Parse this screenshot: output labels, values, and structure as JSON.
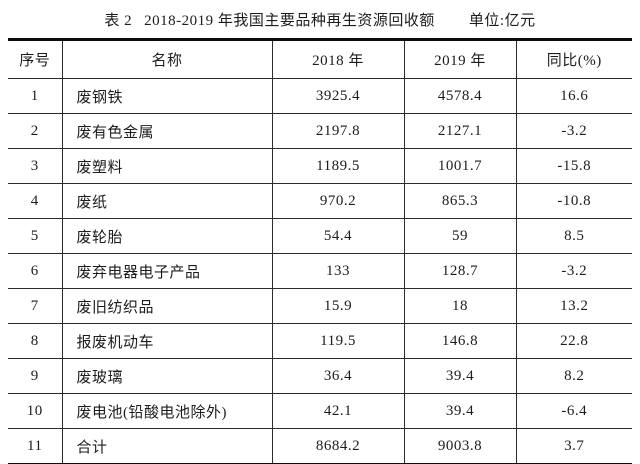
{
  "title": {
    "table_label": "表 2",
    "text": "2018-2019 年我国主要品种再生资源回收额",
    "unit": "单位:亿元"
  },
  "table": {
    "columns": [
      "序号",
      "名称",
      "2018 年",
      "2019 年",
      "同比(%)"
    ],
    "rows": [
      [
        "1",
        "废钢铁",
        "3925.4",
        "4578.4",
        "16.6"
      ],
      [
        "2",
        "废有色金属",
        "2197.8",
        "2127.1",
        "-3.2"
      ],
      [
        "3",
        "废塑料",
        "1189.5",
        "1001.7",
        "-15.8"
      ],
      [
        "4",
        "废纸",
        "970.2",
        "865.3",
        "-10.8"
      ],
      [
        "5",
        "废轮胎",
        "54.4",
        "59",
        "8.5"
      ],
      [
        "6",
        "废弃电器电子产品",
        "133",
        "128.7",
        "-3.2"
      ],
      [
        "7",
        "废旧纺织品",
        "15.9",
        "18",
        "13.2"
      ],
      [
        "8",
        "报废机动车",
        "119.5",
        "146.8",
        "22.8"
      ],
      [
        "9",
        "废玻璃",
        "36.4",
        "39.4",
        "8.2"
      ],
      [
        "10",
        "废电池(铅酸电池除外)",
        "42.1",
        "39.4",
        "-6.4"
      ],
      [
        "11",
        "合计",
        "8684.2",
        "9003.8",
        "3.7"
      ]
    ]
  },
  "chart_data": {
    "type": "table",
    "title": "表 2 2018-2019 年我国主要品种再生资源回收额 (单位:亿元)",
    "categories": [
      "废钢铁",
      "废有色金属",
      "废塑料",
      "废纸",
      "废轮胎",
      "废弃电器电子产品",
      "废旧纺织品",
      "报废机动车",
      "废玻璃",
      "废电池(铅酸电池除外)",
      "合计"
    ],
    "series": [
      {
        "name": "2018 年",
        "values": [
          3925.4,
          2197.8,
          1189.5,
          970.2,
          54.4,
          133,
          15.9,
          119.5,
          36.4,
          42.1,
          8684.2
        ]
      },
      {
        "name": "2019 年",
        "values": [
          4578.4,
          2127.1,
          1001.7,
          865.3,
          59,
          128.7,
          18,
          146.8,
          39.4,
          39.4,
          9003.8
        ]
      },
      {
        "name": "同比(%)",
        "values": [
          16.6,
          -3.2,
          -15.8,
          -10.8,
          8.5,
          -3.2,
          13.2,
          22.8,
          8.2,
          -6.4,
          3.7
        ]
      }
    ]
  },
  "colors": {
    "text": "#1c1c1c",
    "border_thick": "#0d0d0d",
    "border_thin": "#2a2a2a",
    "background": "#ffffff"
  }
}
